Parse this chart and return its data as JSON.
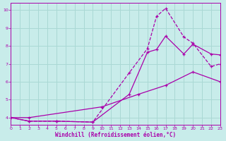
{
  "bg_color": "#c8ecea",
  "grid_color": "#aad8d4",
  "line_color": "#aa00aa",
  "xlim": [
    0,
    23
  ],
  "ylim": [
    3.6,
    10.4
  ],
  "yticks": [
    4,
    5,
    6,
    7,
    8,
    9,
    10
  ],
  "xticks": [
    0,
    1,
    2,
    3,
    4,
    5,
    6,
    7,
    8,
    9,
    10,
    11,
    12,
    13,
    14,
    15,
    16,
    17,
    18,
    19,
    20,
    21,
    22,
    23
  ],
  "xlabel": "Windchill (Refroidissement éolien,°C)",
  "line1_x": [
    0,
    2,
    10,
    14,
    17,
    20,
    23
  ],
  "line1_y": [
    4.0,
    4.0,
    4.6,
    5.3,
    5.8,
    6.55,
    6.0
  ],
  "line2_x": [
    0,
    2,
    5,
    9,
    13,
    15,
    16,
    17,
    19,
    20,
    22,
    23
  ],
  "line2_y": [
    4.0,
    3.8,
    3.8,
    3.75,
    6.5,
    7.85,
    9.65,
    10.1,
    8.5,
    8.15,
    6.85,
    7.0
  ],
  "line3_x": [
    0,
    2,
    5,
    9,
    13,
    15,
    16,
    17,
    19,
    20,
    22,
    23
  ],
  "line3_y": [
    4.0,
    3.8,
    3.8,
    3.75,
    5.3,
    7.65,
    7.8,
    8.55,
    7.55,
    8.1,
    7.55,
    7.5
  ],
  "line1_style": "-",
  "line2_style": "--",
  "line3_style": "-"
}
